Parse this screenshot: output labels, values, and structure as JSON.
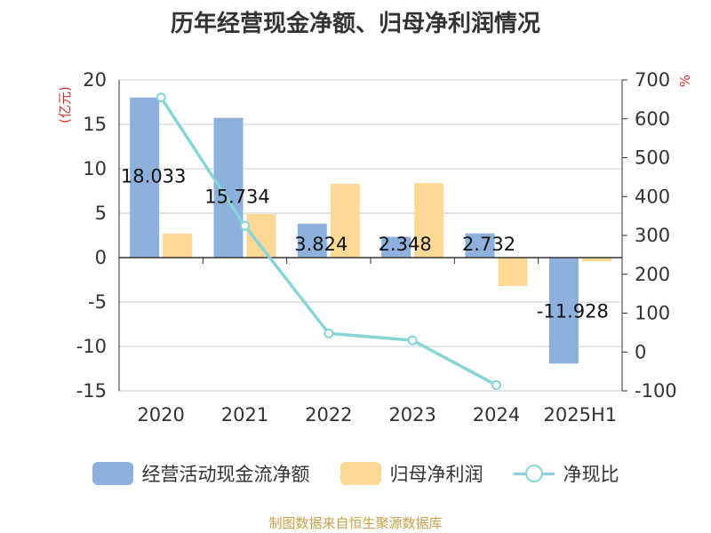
{
  "colors": {
    "bar1": "#8eb0dc",
    "bar2": "#fed995",
    "line": "#87d5d9",
    "grid": "#cccccc",
    "axis": "#333333",
    "unit": "#e03030",
    "source": "#c8a24a"
  },
  "source": "制图数据来自恒生聚源数据库",
  "chart_data": {
    "type": "bar",
    "title": "历年经营现金净额、归母净利润情况",
    "categories": [
      "2020",
      "2021",
      "2022",
      "2023",
      "2024",
      "2025H1"
    ],
    "left_axis": {
      "unit": "(亿元)",
      "min": -15,
      "max": 20,
      "ticks": [
        20,
        15,
        10,
        5,
        0,
        -5,
        -10,
        -15
      ]
    },
    "right_axis": {
      "unit": "%",
      "min": -100,
      "max": 700,
      "ticks": [
        700,
        600,
        500,
        400,
        300,
        200,
        100,
        0,
        -100
      ]
    },
    "series": [
      {
        "name": "经营活动现金流净额",
        "type": "bar",
        "axis": "left",
        "values": [
          18.033,
          15.734,
          3.824,
          2.348,
          2.732,
          -11.928
        ],
        "labels": [
          "18.033",
          "15.734",
          "3.824",
          "2.348",
          "2.732",
          "-11.928"
        ]
      },
      {
        "name": "归母净利润",
        "type": "bar",
        "axis": "left",
        "values": [
          2.7,
          4.9,
          8.3,
          8.4,
          -3.2,
          -0.4
        ]
      },
      {
        "name": "净现比",
        "type": "line",
        "axis": "right",
        "values": [
          655,
          325,
          48,
          30,
          -85,
          null
        ]
      }
    ],
    "grid": true,
    "legend": "bottom"
  }
}
